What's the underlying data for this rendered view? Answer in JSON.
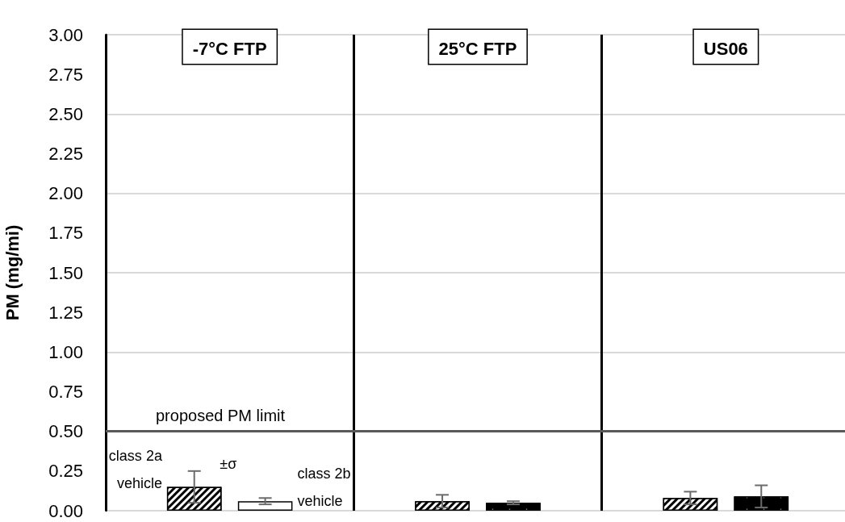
{
  "chart_data": {
    "type": "bar",
    "ylabel": "PM (mg/mi)",
    "categories": [
      "-7°C FTP",
      "25°C FTP",
      "US06"
    ],
    "series": [
      {
        "name": "class 2a vehicle",
        "color": "#000000",
        "values": [
          0.15,
          0.06,
          0.08
        ],
        "errors": [
          0.1,
          0.04,
          0.04
        ]
      },
      {
        "name": "class 2b vehicle",
        "color": "#000000",
        "colors": [
          "#ffffff",
          "#000000",
          "#000000"
        ],
        "values": [
          0.06,
          0.05,
          0.09
        ],
        "errors": [
          0.02,
          0.01,
          0.07
        ]
      }
    ],
    "ylim": [
      0,
      3
    ],
    "yticks": [
      {
        "value": 0,
        "label": "0.00"
      },
      {
        "value": 0.25,
        "label": "0.25"
      },
      {
        "value": 0.5,
        "label": "0.50"
      },
      {
        "value": 0.75,
        "label": "0.75"
      },
      {
        "value": 1,
        "label": "1.00"
      },
      {
        "value": 1.25,
        "label": "1.25"
      },
      {
        "value": 1.5,
        "label": "1.50"
      },
      {
        "value": 1.75,
        "label": "1.75"
      },
      {
        "value": 2,
        "label": "2.00"
      },
      {
        "value": 2.25,
        "label": "2.25"
      },
      {
        "value": 2.5,
        "label": "2.50"
      },
      {
        "value": 2.75,
        "label": "2.75"
      },
      {
        "value": 3,
        "label": "3.00"
      }
    ],
    "ref_lines": [
      {
        "axis": "y",
        "value": 0.5,
        "label": "proposed PM limit",
        "color": "#595959"
      }
    ],
    "annotations": [
      "±σ"
    ],
    "grid": "y",
    "legend": false
  }
}
